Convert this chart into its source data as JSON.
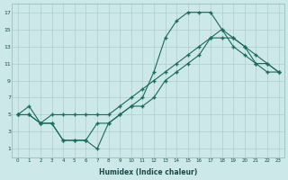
{
  "xlabel": "Humidex (Indice chaleur)",
  "background_color": "#cce8e8",
  "grid_color": "#b0cccc",
  "line_color": "#1a6b5a",
  "xlim": [
    -0.5,
    23.5
  ],
  "ylim": [
    0,
    18
  ],
  "xticks": [
    0,
    1,
    2,
    3,
    4,
    5,
    6,
    7,
    8,
    9,
    10,
    11,
    12,
    13,
    14,
    15,
    16,
    17,
    18,
    19,
    20,
    21,
    22,
    23
  ],
  "yticks": [
    1,
    3,
    5,
    7,
    9,
    11,
    13,
    15,
    17
  ],
  "series1_x": [
    0,
    1,
    2,
    3,
    4,
    5,
    6,
    7,
    8,
    9,
    10,
    11,
    12,
    13,
    14,
    15,
    16,
    17,
    18,
    19,
    20,
    21,
    22,
    23
  ],
  "series1_y": [
    5,
    6,
    4,
    4,
    2,
    2,
    2,
    1,
    4,
    5,
    6,
    7,
    10,
    14,
    16,
    17,
    17,
    17,
    15,
    13,
    12,
    11,
    11,
    10
  ],
  "series2_x": [
    0,
    1,
    2,
    3,
    4,
    5,
    6,
    7,
    8,
    9,
    10,
    11,
    12,
    13,
    14,
    15,
    16,
    17,
    18,
    19,
    20,
    21,
    22,
    23
  ],
  "series2_y": [
    5,
    5,
    4,
    5,
    5,
    5,
    5,
    5,
    5,
    6,
    7,
    8,
    9,
    10,
    11,
    12,
    13,
    14,
    15,
    14,
    13,
    12,
    11,
    10
  ],
  "series3_x": [
    0,
    1,
    2,
    3,
    4,
    5,
    6,
    7,
    8,
    9,
    10,
    11,
    12,
    13,
    14,
    15,
    16,
    17,
    18,
    19,
    20,
    21,
    22,
    23
  ],
  "series3_y": [
    5,
    5,
    4,
    4,
    2,
    2,
    2,
    4,
    4,
    5,
    6,
    6,
    7,
    9,
    10,
    11,
    12,
    14,
    14,
    14,
    13,
    11,
    10,
    10
  ]
}
